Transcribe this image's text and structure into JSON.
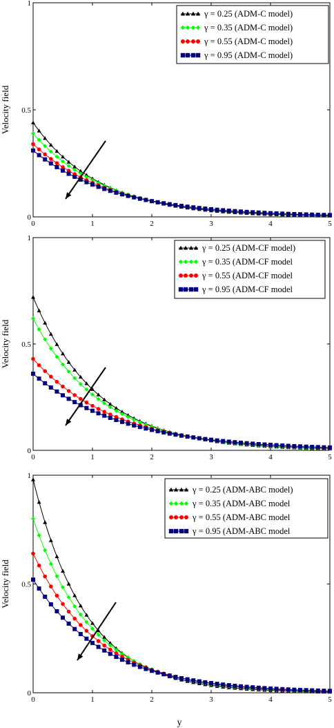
{
  "figure": {
    "xlabel_bottom": "y"
  },
  "chart_data": [
    {
      "type": "line",
      "ylabel": "Velocity field",
      "xlim": [
        0,
        5
      ],
      "ylim": [
        0,
        1
      ],
      "xticks": [
        "0",
        "1",
        "2",
        "3",
        "4",
        "5"
      ],
      "yticks": [
        "0",
        "0.5",
        "1"
      ],
      "grid": false,
      "legend_position": "top-right",
      "annotation": "arrow pointing in direction of increasing γ (curves decrease)",
      "series": [
        {
          "name": "γ = 0.25  (ADM-C model)",
          "color": "#000000",
          "marker": "triangle",
          "y0": 0.44
        },
        {
          "name": "γ = 0.35 (ADM-C model)",
          "color": "#00ff00",
          "marker": "diamond",
          "y0": 0.39
        },
        {
          "name": "γ = 0.55 (ADM-C model)",
          "color": "#ff0000",
          "marker": "circle",
          "y0": 0.34
        },
        {
          "name": "γ = 0.95 (ADM-C model)",
          "color": "#000080",
          "marker": "square",
          "y0": 0.31
        }
      ]
    },
    {
      "type": "line",
      "ylabel": "Velocity field",
      "xlim": [
        0,
        5
      ],
      "ylim": [
        0,
        1
      ],
      "xticks": [
        "0",
        "1",
        "2",
        "3",
        "4",
        "5"
      ],
      "yticks": [
        "0",
        "0.5",
        "1"
      ],
      "grid": false,
      "legend_position": "top-right",
      "series": [
        {
          "name": "γ = 0.25 (ADM-CF model)",
          "color": "#000000",
          "marker": "triangle",
          "y0": 0.72
        },
        {
          "name": "γ = 0.35 (ADM-CF model",
          "color": "#00ff00",
          "marker": "diamond",
          "y0": 0.62
        },
        {
          "name": "γ = 0.55 (ADM-CF model",
          "color": "#ff0000",
          "marker": "circle",
          "y0": 0.43
        },
        {
          "name": "γ = 0.95 (ADM-CF model",
          "color": "#000080",
          "marker": "square",
          "y0": 0.36
        }
      ]
    },
    {
      "type": "line",
      "ylabel": "Velocity field",
      "xlabel": "y",
      "xlim": [
        0,
        5
      ],
      "ylim": [
        0,
        1
      ],
      "xticks": [
        "0",
        "1",
        "2",
        "3",
        "4",
        "5"
      ],
      "yticks": [
        "0",
        "0.5",
        "1"
      ],
      "grid": false,
      "legend_position": "top-right",
      "series": [
        {
          "name": "γ = 0.25 (ADM-ABC model)",
          "color": "#000000",
          "marker": "triangle",
          "y0": 0.98
        },
        {
          "name": "γ = 0.35 (ADM-ABC model",
          "color": "#00ff00",
          "marker": "diamond",
          "y0": 0.8
        },
        {
          "name": "γ = 0.55 (ADM-ABC model",
          "color": "#ff0000",
          "marker": "circle",
          "y0": 0.64
        },
        {
          "name": "γ = 0.95 (ADM-ABC model",
          "color": "#000080",
          "marker": "square",
          "y0": 0.52
        }
      ]
    }
  ]
}
